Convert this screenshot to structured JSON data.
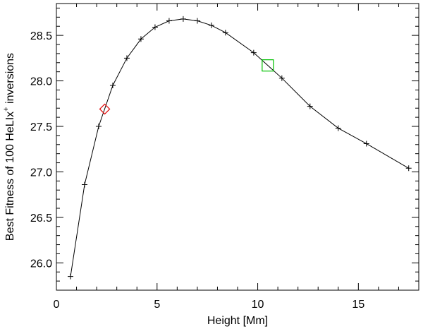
{
  "chart_data": {
    "type": "line",
    "xlabel": "Height [Mm]",
    "ylabel": {
      "prefix": "Best Fitness of 100 HeLIx",
      "superscript": "+",
      "suffix": " inversions"
    },
    "xlim": [
      0,
      18
    ],
    "ylim": [
      25.7,
      28.85
    ],
    "xticks": [
      0,
      5,
      10,
      15
    ],
    "xtick_labels": [
      "0",
      "5",
      "10",
      "15"
    ],
    "yticks": [
      26.0,
      26.5,
      27.0,
      27.5,
      28.0,
      28.5
    ],
    "ytick_labels": [
      "26.0",
      "26.5",
      "27.0",
      "27.5",
      "28.0",
      "28.5"
    ],
    "grid": false,
    "series": [
      {
        "marker": "plus",
        "color": "#000000",
        "x": [
          0.7,
          1.4,
          2.1,
          2.8,
          3.5,
          4.2,
          4.9,
          5.6,
          6.3,
          7.0,
          7.7,
          8.4,
          9.8,
          11.2,
          12.6,
          14.0,
          15.4,
          17.5
        ],
        "y": [
          25.85,
          26.86,
          27.5,
          27.95,
          28.25,
          28.46,
          28.59,
          28.66,
          28.68,
          28.66,
          28.61,
          28.53,
          28.31,
          28.03,
          27.72,
          27.48,
          27.31,
          27.04
        ]
      }
    ],
    "highlights": [
      {
        "shape": "diamond",
        "color": "#e00000",
        "x": 2.4,
        "y": 27.69
      },
      {
        "shape": "square",
        "color": "#00c000",
        "x": 10.5,
        "y": 28.17
      }
    ]
  }
}
